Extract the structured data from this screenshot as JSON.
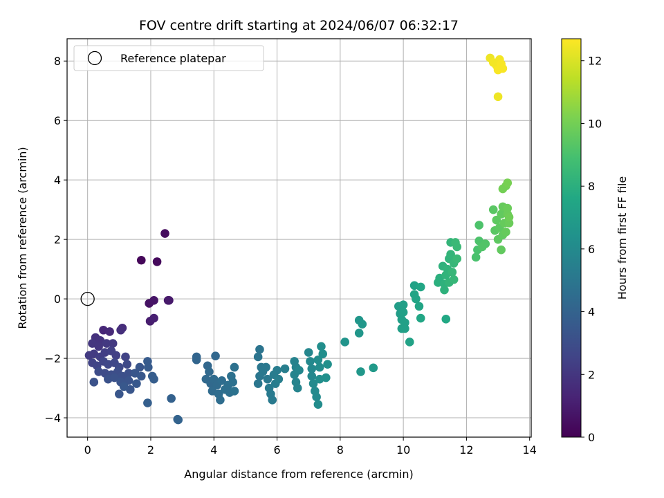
{
  "chart_data": {
    "type": "scatter",
    "title": "FOV centre drift starting at 2024/06/07 06:32:17",
    "xlabel": "Angular distance from reference (arcmin)",
    "ylabel": "Rotation from reference (arcmin)",
    "xlim": [
      -0.65,
      14.05
    ],
    "ylim": [
      -4.65,
      8.75
    ],
    "xticks": [
      "0",
      "2",
      "4",
      "6",
      "8",
      "10",
      "12",
      "14"
    ],
    "yticks": [
      "−4",
      "−2",
      "0",
      "2",
      "4",
      "6",
      "8"
    ],
    "grid": true,
    "legend": {
      "position": "top-left",
      "entries": [
        "Reference platepar"
      ]
    },
    "reference_point": {
      "x": 0,
      "y": 0
    },
    "colorbar": {
      "label": "Hours from first FF file",
      "colormap": "viridis",
      "range": [
        0,
        12.7
      ],
      "ticks": [
        "0",
        "2",
        "4",
        "6",
        "8",
        "10",
        "12"
      ]
    },
    "points": [
      {
        "x": 1.7,
        "y": 1.3,
        "h": 0.2
      },
      {
        "x": 2.2,
        "y": 1.25,
        "h": 0.3
      },
      {
        "x": 2.45,
        "y": 2.2,
        "h": 0.4
      },
      {
        "x": 1.95,
        "y": -0.15,
        "h": 0.6
      },
      {
        "x": 2.1,
        "y": -0.05,
        "h": 0.7
      },
      {
        "x": 2.55,
        "y": -0.05,
        "h": 0.8
      },
      {
        "x": 2.58,
        "y": -0.05,
        "h": 0.9
      },
      {
        "x": 1.98,
        "y": -0.75,
        "h": 1.0
      },
      {
        "x": 2.1,
        "y": -0.65,
        "h": 1.1
      },
      {
        "x": 0.5,
        "y": -1.05,
        "h": 1.4
      },
      {
        "x": 0.7,
        "y": -1.1,
        "h": 1.5
      },
      {
        "x": 1.1,
        "y": -0.98,
        "h": 1.6
      },
      {
        "x": 1.05,
        "y": -1.05,
        "h": 1.7
      },
      {
        "x": 0.25,
        "y": -1.3,
        "h": 1.8
      },
      {
        "x": 0.4,
        "y": -1.4,
        "h": 1.9
      },
      {
        "x": 0.15,
        "y": -1.5,
        "h": 2.0
      },
      {
        "x": 0.35,
        "y": -1.6,
        "h": 2.0
      },
      {
        "x": 0.6,
        "y": -1.5,
        "h": 2.1
      },
      {
        "x": 0.8,
        "y": -1.5,
        "h": 2.1
      },
      {
        "x": 0.05,
        "y": -1.9,
        "h": 2.2
      },
      {
        "x": 0.2,
        "y": -1.85,
        "h": 2.2
      },
      {
        "x": 0.4,
        "y": -1.95,
        "h": 2.3
      },
      {
        "x": 0.55,
        "y": -1.8,
        "h": 2.3
      },
      {
        "x": 0.75,
        "y": -1.75,
        "h": 2.4
      },
      {
        "x": 0.9,
        "y": -1.9,
        "h": 2.4
      },
      {
        "x": 1.2,
        "y": -1.95,
        "h": 2.5
      },
      {
        "x": 0.15,
        "y": -2.15,
        "h": 2.5
      },
      {
        "x": 0.3,
        "y": -2.25,
        "h": 2.6
      },
      {
        "x": 0.5,
        "y": -2.1,
        "h": 2.6
      },
      {
        "x": 0.65,
        "y": -2.2,
        "h": 2.7
      },
      {
        "x": 0.85,
        "y": -2.15,
        "h": 2.7
      },
      {
        "x": 1.0,
        "y": -2.3,
        "h": 2.8
      },
      {
        "x": 1.25,
        "y": -2.2,
        "h": 2.8
      },
      {
        "x": 0.35,
        "y": -2.45,
        "h": 2.9
      },
      {
        "x": 0.55,
        "y": -2.5,
        "h": 2.9
      },
      {
        "x": 0.75,
        "y": -2.55,
        "h": 3.0
      },
      {
        "x": 0.95,
        "y": -2.45,
        "h": 3.0
      },
      {
        "x": 1.1,
        "y": -2.6,
        "h": 3.1
      },
      {
        "x": 1.3,
        "y": -2.5,
        "h": 3.1
      },
      {
        "x": 0.65,
        "y": -2.7,
        "h": 3.2
      },
      {
        "x": 0.85,
        "y": -2.65,
        "h": 3.2
      },
      {
        "x": 1.05,
        "y": -2.8,
        "h": 3.3
      },
      {
        "x": 1.3,
        "y": -2.75,
        "h": 3.3
      },
      {
        "x": 1.5,
        "y": -2.5,
        "h": 3.4
      },
      {
        "x": 1.65,
        "y": -2.3,
        "h": 3.4
      },
      {
        "x": 1.7,
        "y": -2.6,
        "h": 3.5
      },
      {
        "x": 1.55,
        "y": -2.85,
        "h": 3.5
      },
      {
        "x": 0.2,
        "y": -2.8,
        "h": 3.2
      },
      {
        "x": 1.0,
        "y": -3.2,
        "h": 3.4
      },
      {
        "x": 1.35,
        "y": -3.05,
        "h": 3.4
      },
      {
        "x": 1.15,
        "y": -2.95,
        "h": 3.5
      },
      {
        "x": 1.9,
        "y": -2.1,
        "h": 3.6
      },
      {
        "x": 1.92,
        "y": -2.3,
        "h": 3.6
      },
      {
        "x": 2.05,
        "y": -2.6,
        "h": 3.7
      },
      {
        "x": 2.1,
        "y": -2.7,
        "h": 3.7
      },
      {
        "x": 1.9,
        "y": -3.5,
        "h": 3.8
      },
      {
        "x": 2.65,
        "y": -3.35,
        "h": 3.9
      },
      {
        "x": 2.85,
        "y": -4.05,
        "h": 4.0
      },
      {
        "x": 2.87,
        "y": -4.07,
        "h": 4.0
      },
      {
        "x": 3.45,
        "y": -1.95,
        "h": 4.1
      },
      {
        "x": 3.45,
        "y": -2.05,
        "h": 4.1
      },
      {
        "x": 4.05,
        "y": -1.92,
        "h": 4.2
      },
      {
        "x": 3.8,
        "y": -2.25,
        "h": 4.2
      },
      {
        "x": 3.85,
        "y": -2.45,
        "h": 4.3
      },
      {
        "x": 3.75,
        "y": -2.7,
        "h": 4.3
      },
      {
        "x": 3.9,
        "y": -2.85,
        "h": 4.3
      },
      {
        "x": 4.0,
        "y": -2.7,
        "h": 4.4
      },
      {
        "x": 4.1,
        "y": -2.9,
        "h": 4.4
      },
      {
        "x": 3.95,
        "y": -3.1,
        "h": 4.4
      },
      {
        "x": 4.15,
        "y": -3.2,
        "h": 4.5
      },
      {
        "x": 4.2,
        "y": -3.4,
        "h": 4.5
      },
      {
        "x": 4.25,
        "y": -2.75,
        "h": 4.5
      },
      {
        "x": 4.35,
        "y": -3.05,
        "h": 4.6
      },
      {
        "x": 4.45,
        "y": -2.9,
        "h": 4.6
      },
      {
        "x": 4.5,
        "y": -3.15,
        "h": 4.6
      },
      {
        "x": 4.55,
        "y": -2.6,
        "h": 4.7
      },
      {
        "x": 4.6,
        "y": -2.8,
        "h": 4.7
      },
      {
        "x": 4.65,
        "y": -2.3,
        "h": 4.7
      },
      {
        "x": 4.65,
        "y": -3.1,
        "h": 4.8
      },
      {
        "x": 5.4,
        "y": -1.95,
        "h": 4.9
      },
      {
        "x": 5.45,
        "y": -1.7,
        "h": 4.9
      },
      {
        "x": 5.5,
        "y": -2.3,
        "h": 5.0
      },
      {
        "x": 5.45,
        "y": -2.6,
        "h": 5.0
      },
      {
        "x": 5.4,
        "y": -2.85,
        "h": 5.0
      },
      {
        "x": 5.55,
        "y": -2.45,
        "h": 5.1
      },
      {
        "x": 5.65,
        "y": -2.3,
        "h": 5.1
      },
      {
        "x": 5.7,
        "y": -2.7,
        "h": 5.1
      },
      {
        "x": 5.75,
        "y": -3.0,
        "h": 5.2
      },
      {
        "x": 5.8,
        "y": -3.2,
        "h": 5.2
      },
      {
        "x": 5.85,
        "y": -3.4,
        "h": 5.2
      },
      {
        "x": 5.9,
        "y": -2.55,
        "h": 5.3
      },
      {
        "x": 5.95,
        "y": -2.85,
        "h": 5.3
      },
      {
        "x": 6.0,
        "y": -2.4,
        "h": 5.3
      },
      {
        "x": 6.05,
        "y": -2.7,
        "h": 5.4
      },
      {
        "x": 6.25,
        "y": -2.35,
        "h": 5.4
      },
      {
        "x": 6.55,
        "y": -2.1,
        "h": 5.6
      },
      {
        "x": 6.6,
        "y": -2.3,
        "h": 5.6
      },
      {
        "x": 6.55,
        "y": -2.55,
        "h": 5.7
      },
      {
        "x": 6.6,
        "y": -2.8,
        "h": 5.7
      },
      {
        "x": 6.65,
        "y": -3.0,
        "h": 5.7
      },
      {
        "x": 6.7,
        "y": -2.4,
        "h": 5.8
      },
      {
        "x": 7.0,
        "y": -1.8,
        "h": 5.8
      },
      {
        "x": 7.05,
        "y": -2.1,
        "h": 5.9
      },
      {
        "x": 7.1,
        "y": -2.35,
        "h": 5.9
      },
      {
        "x": 7.1,
        "y": -2.6,
        "h": 5.9
      },
      {
        "x": 7.15,
        "y": -2.85,
        "h": 6.0
      },
      {
        "x": 7.2,
        "y": -3.1,
        "h": 6.0
      },
      {
        "x": 7.25,
        "y": -3.3,
        "h": 6.0
      },
      {
        "x": 7.3,
        "y": -3.55,
        "h": 6.1
      },
      {
        "x": 7.3,
        "y": -2.05,
        "h": 6.1
      },
      {
        "x": 7.35,
        "y": -2.3,
        "h": 6.1
      },
      {
        "x": 7.35,
        "y": -2.7,
        "h": 6.2
      },
      {
        "x": 7.4,
        "y": -1.6,
        "h": 6.2
      },
      {
        "x": 7.45,
        "y": -1.85,
        "h": 6.2
      },
      {
        "x": 7.55,
        "y": -2.65,
        "h": 6.3
      },
      {
        "x": 7.6,
        "y": -2.2,
        "h": 6.3
      },
      {
        "x": 8.15,
        "y": -1.45,
        "h": 6.5
      },
      {
        "x": 8.6,
        "y": -0.72,
        "h": 6.6
      },
      {
        "x": 8.6,
        "y": -1.15,
        "h": 6.6
      },
      {
        "x": 8.7,
        "y": -0.85,
        "h": 6.7
      },
      {
        "x": 8.65,
        "y": -2.45,
        "h": 6.7
      },
      {
        "x": 9.05,
        "y": -2.32,
        "h": 6.8
      },
      {
        "x": 9.85,
        "y": -0.25,
        "h": 7.0
      },
      {
        "x": 9.9,
        "y": -0.5,
        "h": 7.0
      },
      {
        "x": 9.95,
        "y": -0.7,
        "h": 7.1
      },
      {
        "x": 9.95,
        "y": -1.0,
        "h": 7.1
      },
      {
        "x": 10.0,
        "y": -0.2,
        "h": 7.1
      },
      {
        "x": 10.0,
        "y": -0.45,
        "h": 7.2
      },
      {
        "x": 10.05,
        "y": -0.8,
        "h": 7.2
      },
      {
        "x": 10.05,
        "y": -1.0,
        "h": 7.2
      },
      {
        "x": 10.2,
        "y": -1.45,
        "h": 7.3
      },
      {
        "x": 10.35,
        "y": 0.45,
        "h": 7.3
      },
      {
        "x": 10.35,
        "y": 0.15,
        "h": 7.4
      },
      {
        "x": 10.4,
        "y": 0.0,
        "h": 7.4
      },
      {
        "x": 10.5,
        "y": -0.25,
        "h": 7.4
      },
      {
        "x": 10.55,
        "y": 0.4,
        "h": 7.5
      },
      {
        "x": 10.55,
        "y": -0.65,
        "h": 7.5
      },
      {
        "x": 11.1,
        "y": 0.55,
        "h": 8.0
      },
      {
        "x": 11.15,
        "y": 0.7,
        "h": 8.0
      },
      {
        "x": 11.25,
        "y": 1.1,
        "h": 8.1
      },
      {
        "x": 11.3,
        "y": 0.3,
        "h": 8.1
      },
      {
        "x": 11.3,
        "y": 0.5,
        "h": 8.1
      },
      {
        "x": 11.35,
        "y": 0.8,
        "h": 8.2
      },
      {
        "x": 11.4,
        "y": 1.0,
        "h": 8.2
      },
      {
        "x": 11.45,
        "y": 1.35,
        "h": 8.2
      },
      {
        "x": 11.45,
        "y": 0.55,
        "h": 8.3
      },
      {
        "x": 11.5,
        "y": 1.5,
        "h": 8.3
      },
      {
        "x": 11.5,
        "y": 1.9,
        "h": 8.3
      },
      {
        "x": 11.55,
        "y": 0.9,
        "h": 8.4
      },
      {
        "x": 11.6,
        "y": 1.2,
        "h": 8.4
      },
      {
        "x": 11.6,
        "y": 0.65,
        "h": 8.4
      },
      {
        "x": 11.65,
        "y": 1.9,
        "h": 8.5
      },
      {
        "x": 11.7,
        "y": 1.75,
        "h": 8.5
      },
      {
        "x": 11.7,
        "y": 1.35,
        "h": 8.5
      },
      {
        "x": 11.35,
        "y": -0.68,
        "h": 7.6
      },
      {
        "x": 12.3,
        "y": 1.4,
        "h": 9.0
      },
      {
        "x": 12.35,
        "y": 1.65,
        "h": 9.0
      },
      {
        "x": 12.4,
        "y": 1.95,
        "h": 9.1
      },
      {
        "x": 12.4,
        "y": 2.48,
        "h": 9.1
      },
      {
        "x": 12.5,
        "y": 1.75,
        "h": 9.2
      },
      {
        "x": 12.6,
        "y": 1.85,
        "h": 9.2
      },
      {
        "x": 12.85,
        "y": 3.0,
        "h": 9.4
      },
      {
        "x": 12.9,
        "y": 2.3,
        "h": 9.4
      },
      {
        "x": 12.95,
        "y": 2.65,
        "h": 9.5
      },
      {
        "x": 13.0,
        "y": 2.0,
        "h": 9.5
      },
      {
        "x": 13.05,
        "y": 2.4,
        "h": 9.5
      },
      {
        "x": 13.1,
        "y": 2.85,
        "h": 9.6
      },
      {
        "x": 13.1,
        "y": 1.65,
        "h": 9.6
      },
      {
        "x": 13.15,
        "y": 2.15,
        "h": 9.6
      },
      {
        "x": 13.15,
        "y": 3.1,
        "h": 9.7
      },
      {
        "x": 13.2,
        "y": 2.55,
        "h": 9.7
      },
      {
        "x": 13.25,
        "y": 2.25,
        "h": 9.7
      },
      {
        "x": 13.3,
        "y": 2.85,
        "h": 9.8
      },
      {
        "x": 13.3,
        "y": 3.05,
        "h": 9.8
      },
      {
        "x": 13.35,
        "y": 2.55,
        "h": 9.8
      },
      {
        "x": 13.35,
        "y": 2.75,
        "h": 9.9
      },
      {
        "x": 13.15,
        "y": 3.7,
        "h": 10.0
      },
      {
        "x": 13.25,
        "y": 3.8,
        "h": 10.0
      },
      {
        "x": 13.3,
        "y": 3.9,
        "h": 10.1
      },
      {
        "x": 12.75,
        "y": 8.1,
        "h": 12.4
      },
      {
        "x": 12.85,
        "y": 7.95,
        "h": 12.5
      },
      {
        "x": 12.95,
        "y": 7.85,
        "h": 12.5
      },
      {
        "x": 13.05,
        "y": 8.05,
        "h": 12.5
      },
      {
        "x": 13.0,
        "y": 7.7,
        "h": 12.6
      },
      {
        "x": 13.1,
        "y": 7.9,
        "h": 12.6
      },
      {
        "x": 13.15,
        "y": 7.75,
        "h": 12.6
      },
      {
        "x": 13.0,
        "y": 6.8,
        "h": 12.4
      }
    ]
  }
}
